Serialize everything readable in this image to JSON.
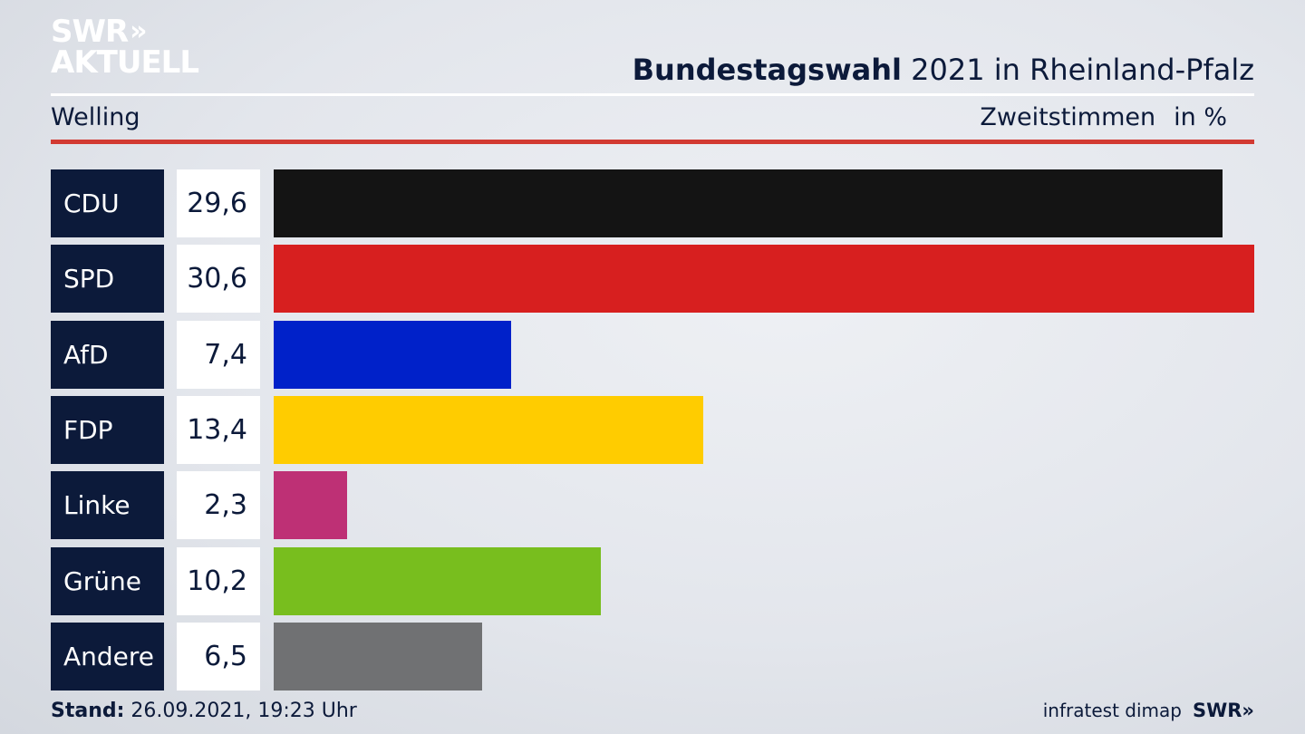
{
  "logo": {
    "line1": "SWR",
    "chevrons": "»",
    "line2": "AKTUELL"
  },
  "header": {
    "title_bold": "Bundestagswahl",
    "title_rest": " 2021 in Rheinland-Pfalz",
    "region": "Welling",
    "subtitle": "Zweitstimmen",
    "unit": "in %"
  },
  "chart_data": {
    "type": "bar",
    "orientation": "horizontal",
    "categories": [
      "CDU",
      "SPD",
      "AfD",
      "FDP",
      "Linke",
      "Grüne",
      "Andere"
    ],
    "values": [
      29.6,
      30.6,
      7.4,
      13.4,
      2.3,
      10.2,
      6.5
    ],
    "value_labels": [
      "29,6",
      "30,6",
      "7,4",
      "13,4",
      "2,3",
      "10,2",
      "6,5"
    ],
    "colors": [
      "#141414",
      "#d71f1f",
      "#0021c9",
      "#ffcc00",
      "#be3075",
      "#78be1e",
      "#707173"
    ],
    "xmax": 30.6,
    "grid": false,
    "legend": "none"
  },
  "footer": {
    "stand_label": "Stand:",
    "stand_value": " 26.09.2021, 19:23 Uhr",
    "source": "infratest dimap",
    "brand": "SWR",
    "brand_chevrons": "»"
  }
}
